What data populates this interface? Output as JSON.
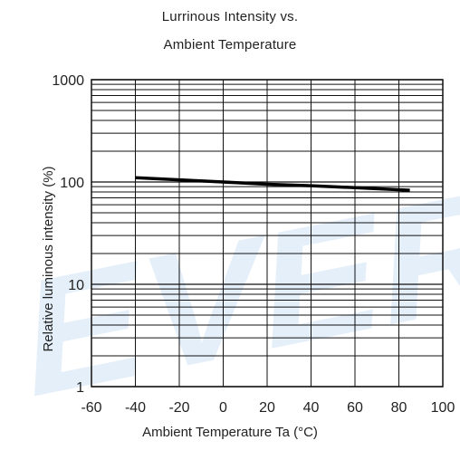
{
  "chart_data": {
    "type": "line",
    "title_lines": [
      "Lurrinous Intensity vs.",
      "Ambient Temperature"
    ],
    "xlabel": "Ambient Temperature Ta (°C)",
    "ylabel": "Relative luminous intensity (%)",
    "x_ticks": [
      -60,
      -40,
      -20,
      0,
      20,
      40,
      60,
      80,
      100
    ],
    "x_tick_labels": [
      "-60",
      "-40",
      "-20",
      "0",
      "20",
      "40",
      "60",
      "80",
      "100"
    ],
    "y_ticks": [
      1,
      10,
      100,
      1000
    ],
    "y_tick_labels": [
      "1",
      "10",
      "100",
      "1000"
    ],
    "xlim": [
      -60,
      100
    ],
    "ylim": [
      1,
      1000
    ],
    "y_scale": "log",
    "grid": true,
    "watermark": "EVER",
    "series": [
      {
        "x": [
          -40,
          -20,
          0,
          20,
          40,
          60,
          85
        ],
        "y": [
          110,
          105,
          100,
          95,
          92,
          88,
          83
        ]
      }
    ]
  }
}
